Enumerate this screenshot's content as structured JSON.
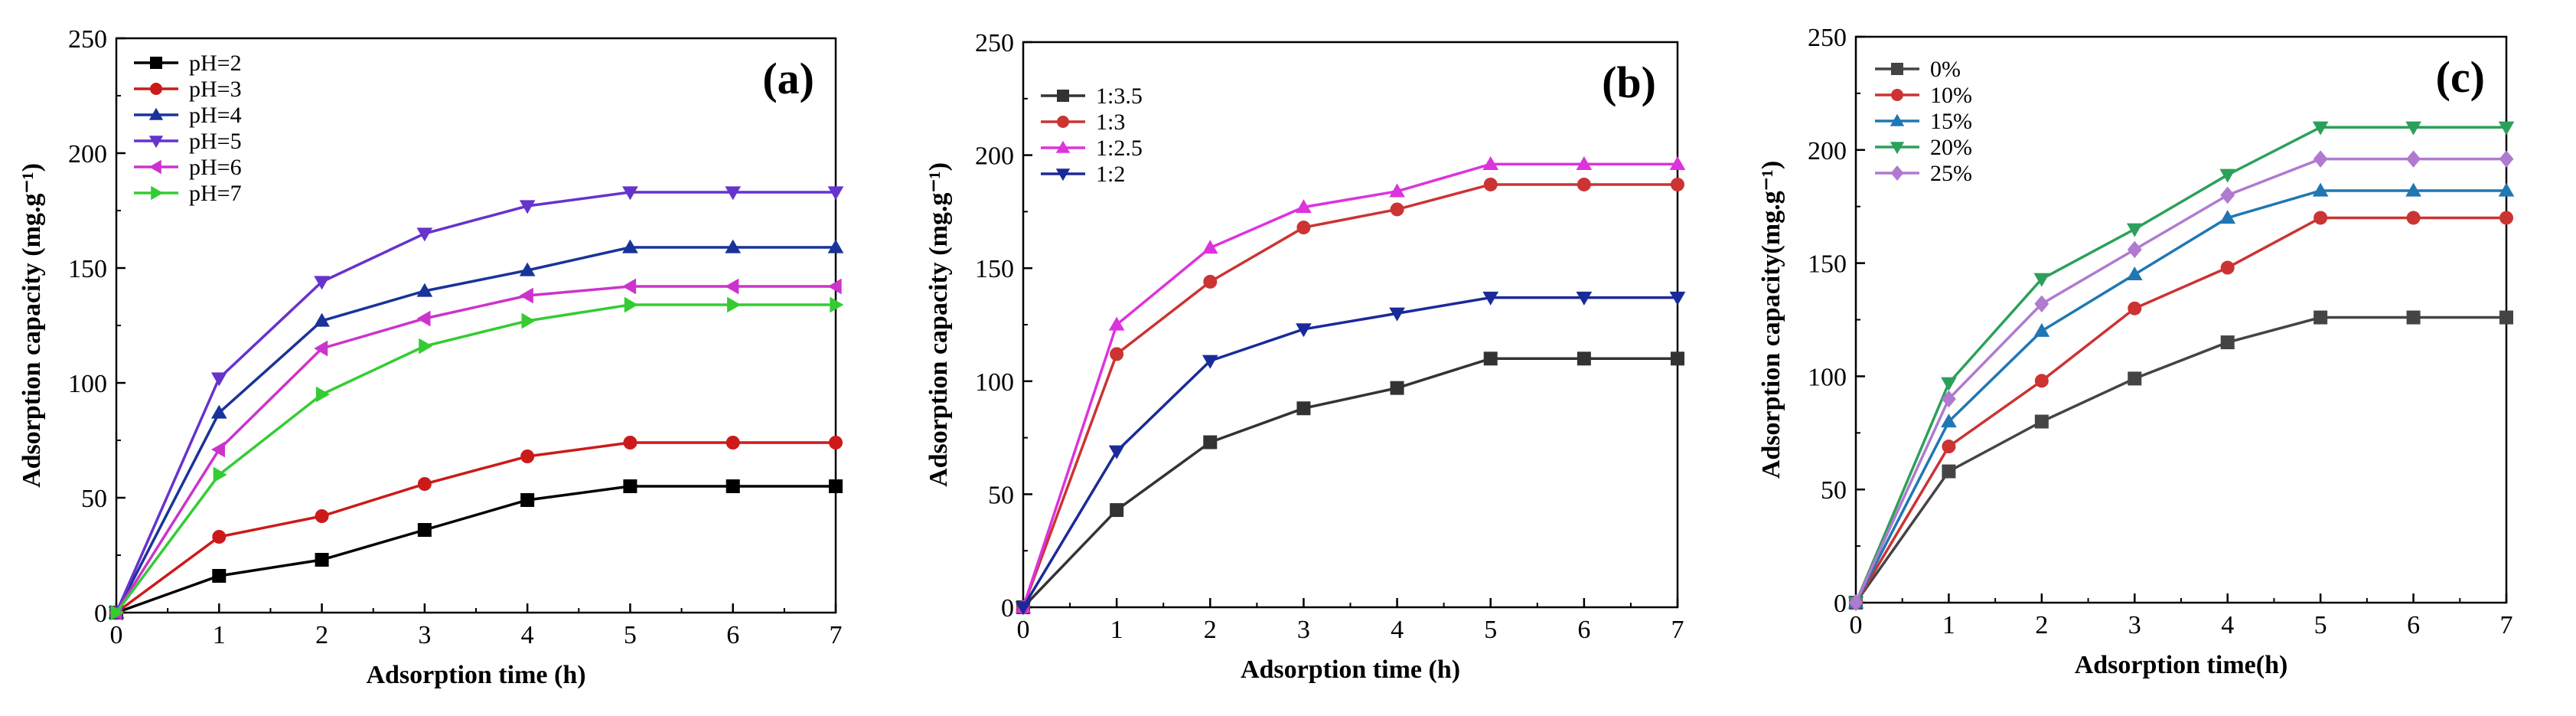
{
  "chart_data": [
    {
      "type": "line",
      "panel_label": "(a)",
      "xlabel": "Adsorption time (h)",
      "ylabel": "Adsorption capacity (mg.g⁻¹)",
      "xlim": [
        0,
        7
      ],
      "ylim": [
        0,
        250
      ],
      "xticks": [
        "0",
        "1",
        "2",
        "3",
        "4",
        "5",
        "6",
        "7"
      ],
      "yticks": [
        "0",
        "50",
        "100",
        "150",
        "200",
        "250"
      ],
      "legend_position": "top-left",
      "x": [
        0,
        1,
        2,
        3,
        4,
        5,
        6,
        7
      ],
      "series": [
        {
          "name": "pH=2",
          "color": "#000000",
          "marker": "square",
          "values": [
            0,
            16,
            23,
            36,
            49,
            55,
            55,
            55
          ]
        },
        {
          "name": "pH=3",
          "color": "#cc1a1a",
          "marker": "circle",
          "values": [
            0,
            33,
            42,
            56,
            68,
            74,
            74,
            74
          ]
        },
        {
          "name": "pH=4",
          "color": "#1a3399",
          "marker": "triangle-up",
          "values": [
            0,
            87,
            127,
            140,
            149,
            159,
            159,
            159
          ]
        },
        {
          "name": "pH=5",
          "color": "#6633cc",
          "marker": "triangle-down",
          "values": [
            0,
            102,
            144,
            165,
            177,
            183,
            183,
            183
          ]
        },
        {
          "name": "pH=6",
          "color": "#cc33cc",
          "marker": "triangle-left",
          "values": [
            0,
            71,
            115,
            128,
            138,
            142,
            142,
            142
          ]
        },
        {
          "name": "pH=7",
          "color": "#33cc33",
          "marker": "triangle-right",
          "values": [
            0,
            60,
            95,
            116,
            127,
            134,
            134,
            134
          ]
        }
      ]
    },
    {
      "type": "line",
      "panel_label": "(b)",
      "xlabel": "Adsorption time (h)",
      "ylabel": "Adsorption capacity (mg.g⁻¹)",
      "xlim": [
        0,
        7
      ],
      "ylim": [
        0,
        250
      ],
      "xticks": [
        "0",
        "1",
        "2",
        "3",
        "4",
        "5",
        "6",
        "7"
      ],
      "yticks": [
        "0",
        "50",
        "100",
        "150",
        "200",
        "250"
      ],
      "legend_position": "top-left",
      "x": [
        0,
        1,
        2,
        3,
        4,
        5,
        6,
        7
      ],
      "series": [
        {
          "name": "1:3.5",
          "color": "#333333",
          "marker": "square",
          "values": [
            0,
            43,
            73,
            88,
            97,
            110,
            110,
            110
          ]
        },
        {
          "name": "1:3",
          "color": "#cc3333",
          "marker": "circle",
          "values": [
            0,
            112,
            144,
            168,
            176,
            187,
            187,
            187
          ]
        },
        {
          "name": "1:2.5",
          "color": "#dd33dd",
          "marker": "triangle-up",
          "values": [
            0,
            125,
            159,
            177,
            184,
            196,
            196,
            196
          ]
        },
        {
          "name": "1:2",
          "color": "#1a2a99",
          "marker": "triangle-down",
          "values": [
            0,
            69,
            109,
            123,
            130,
            137,
            137,
            137
          ]
        }
      ]
    },
    {
      "type": "line",
      "panel_label": "(c)",
      "xlabel": "Adsorption time(h)",
      "ylabel": "Adsorption capacity(mg.g⁻¹)",
      "xlim": [
        0,
        7
      ],
      "ylim": [
        0,
        250
      ],
      "xticks": [
        "0",
        "1",
        "2",
        "3",
        "4",
        "5",
        "6",
        "7"
      ],
      "yticks": [
        "0",
        "50",
        "100",
        "150",
        "200",
        "250"
      ],
      "legend_position": "top-left",
      "x": [
        0,
        1,
        2,
        3,
        4,
        5,
        6,
        7
      ],
      "series": [
        {
          "name": "0%",
          "color": "#444444",
          "marker": "square",
          "values": [
            0,
            58,
            80,
            99,
            115,
            126,
            126,
            126
          ]
        },
        {
          "name": "10%",
          "color": "#cc3333",
          "marker": "circle",
          "values": [
            0,
            69,
            98,
            130,
            148,
            170,
            170,
            170
          ]
        },
        {
          "name": "15%",
          "color": "#1f77b4",
          "marker": "triangle-up",
          "values": [
            0,
            80,
            120,
            145,
            170,
            182,
            182,
            182
          ]
        },
        {
          "name": "20%",
          "color": "#2ca05a",
          "marker": "triangle-down",
          "values": [
            0,
            97,
            143,
            165,
            189,
            210,
            210,
            210
          ]
        },
        {
          "name": "25%",
          "color": "#b07ad0",
          "marker": "diamond",
          "values": [
            0,
            90,
            132,
            156,
            180,
            196,
            196,
            196
          ]
        }
      ]
    }
  ]
}
